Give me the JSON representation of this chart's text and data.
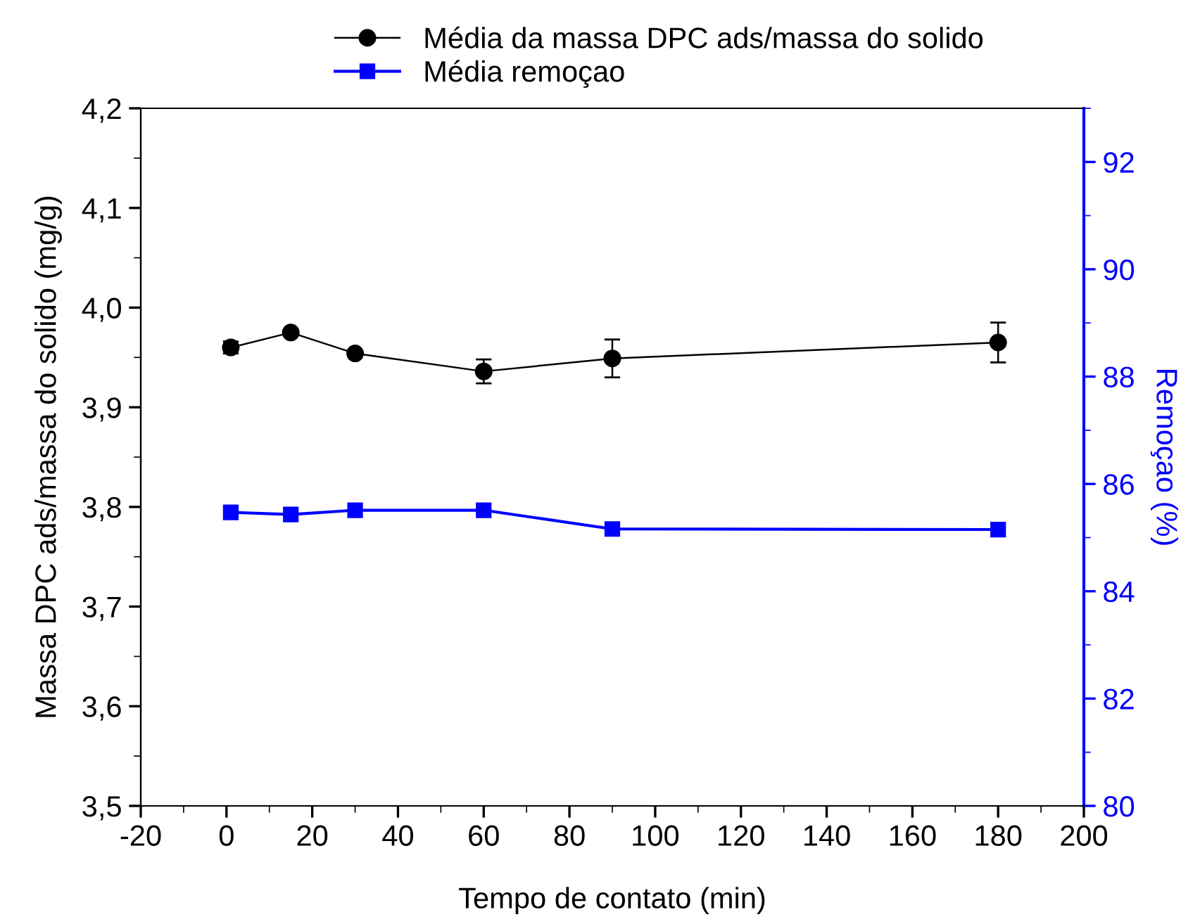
{
  "chart_data": {
    "type": "line",
    "xlabel": "Tempo de contato (min)",
    "ylabel": "Massa DPC ads/massa do solido (mg/g)",
    "y2label": "Remoçao (%)",
    "x": [
      1,
      15,
      30,
      60,
      90,
      180
    ],
    "series": [
      {
        "name": "Média da massa DPC ads/massa do solido",
        "color": "#000000",
        "marker": "circle",
        "values": [
          3.96,
          3.975,
          3.954,
          3.936,
          3.949,
          3.965
        ],
        "errors": [
          0.006,
          0.003,
          0.003,
          0.012,
          0.019,
          0.02
        ]
      },
      {
        "name": "Média remoçao",
        "color": "#0000ff",
        "marker": "square",
        "axis": "y2",
        "values": [
          85.47,
          85.43,
          85.51,
          85.51,
          85.16,
          85.15
        ]
      }
    ],
    "xlim": [
      -20,
      200
    ],
    "xticks": [
      -20,
      0,
      20,
      40,
      60,
      80,
      100,
      120,
      140,
      160,
      180,
      200
    ],
    "ylim": [
      3.5,
      4.2
    ],
    "yticks": [
      {
        "value": 3.5,
        "label": "3,5"
      },
      {
        "value": 3.6,
        "label": "3,6"
      },
      {
        "value": 3.7,
        "label": "3,7"
      },
      {
        "value": 3.8,
        "label": "3,8"
      },
      {
        "value": 3.9,
        "label": "3,9"
      },
      {
        "value": 4.0,
        "label": "4,0"
      },
      {
        "value": 4.1,
        "label": "4,1"
      },
      {
        "value": 4.2,
        "label": "4,2"
      }
    ],
    "y2lim": [
      80,
      93
    ],
    "y2ticks": [
      80,
      82,
      84,
      86,
      88,
      90,
      92
    ],
    "grid": false,
    "legend": "top",
    "line_style": "solid"
  }
}
